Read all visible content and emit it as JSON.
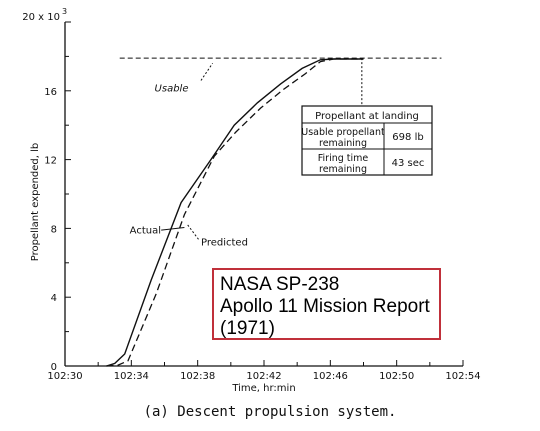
{
  "chart_data": {
    "type": "line",
    "xlabel": "Time, hr:min",
    "ylabel": "Propellant expended, lb",
    "y_exponent_label": "20 x 10",
    "y_exponent_power": "3",
    "x_ticks": [
      "102:30",
      "102:34",
      "102:38",
      "102:42",
      "102:46",
      "102:50",
      "102:54"
    ],
    "y_ticks": [
      "0",
      "4",
      "8",
      "12",
      "16"
    ],
    "xlim_minutes": [
      0,
      24
    ],
    "ylim": [
      0,
      20
    ],
    "y_units_multiplier": 1000,
    "series": [
      {
        "name": "Actual",
        "style": "solid",
        "x": [
          2.5,
          3.0,
          3.6,
          5.2,
          7.0,
          8.8,
          10.2,
          11.6,
          13.0,
          14.3,
          15.4,
          16.2,
          17.2,
          18.0
        ],
        "y": [
          0.0,
          0.15,
          0.7,
          5.0,
          9.5,
          12.0,
          14.0,
          15.3,
          16.4,
          17.3,
          17.8,
          17.85,
          17.85,
          17.85
        ]
      },
      {
        "name": "Predicted",
        "style": "dashed",
        "x": [
          2.5,
          3.2,
          3.8,
          5.5,
          7.2,
          9.0,
          10.3,
          11.8,
          13.2,
          14.5,
          15.4,
          16.2,
          17.2,
          18.0
        ],
        "y": [
          0.0,
          0.05,
          0.3,
          4.2,
          8.8,
          12.2,
          13.6,
          15.0,
          16.1,
          17.0,
          17.7,
          17.85,
          17.85,
          17.85
        ]
      }
    ],
    "usable_line": {
      "label": "Usable",
      "y": 17.9
    },
    "annotations": {
      "actual": "Actual",
      "predicted": "Predicted"
    },
    "landing_table": {
      "title": "Propellant at landing",
      "rows": [
        {
          "label_line1": "Usable propellant",
          "label_line2": "remaining",
          "value": "698 lb"
        },
        {
          "label_line1": "Firing time",
          "label_line2": "remaining",
          "value": "43 sec"
        }
      ]
    },
    "grid": false,
    "legend": "none"
  },
  "note": {
    "line1": "NASA SP-238",
    "line2": "Apollo 11 Mission Report",
    "line3": "(1971)",
    "border_color": "#c0303a"
  },
  "caption": "(a) Descent propulsion system."
}
